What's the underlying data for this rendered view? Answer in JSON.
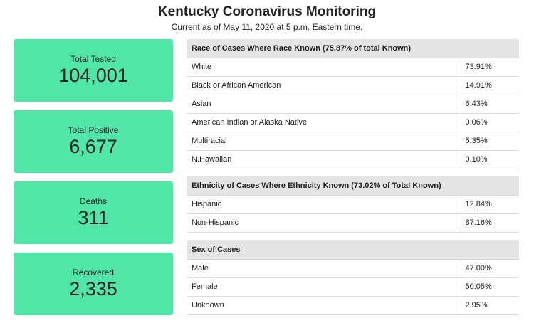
{
  "header": {
    "title": "Kentucky Coronavirus Monitoring",
    "subtitle": "Current as of May 11, 2020 at 5 p.m. Eastern time."
  },
  "cards": [
    {
      "label": "Total Tested",
      "value": "104,001"
    },
    {
      "label": "Total Positive",
      "value": "6,677"
    },
    {
      "label": "Deaths",
      "value": "311"
    },
    {
      "label": "Recovered",
      "value": "2,335"
    }
  ],
  "colors": {
    "card_bg": "#52e5a8",
    "table_header_bg": "#e4e4e4"
  },
  "race": {
    "heading": "Race of Cases Where Race Known (75.87% of total Known)",
    "rows": [
      {
        "name": "White",
        "pct": "73.91%"
      },
      {
        "name": "Black or African American",
        "pct": "14.91%"
      },
      {
        "name": "Asian",
        "pct": "6.43%"
      },
      {
        "name": "American Indian or Alaska Native",
        "pct": "0.06%"
      },
      {
        "name": "Multiracial",
        "pct": "5.35%"
      },
      {
        "name": "N.Hawaiian",
        "pct": "0.10%"
      }
    ]
  },
  "ethnicity": {
    "heading": "Ethnicity of Cases Where Ethnicity Known (73.02% of Total Known)",
    "rows": [
      {
        "name": "Hispanic",
        "pct": "12.84%"
      },
      {
        "name": "Non-Hispanic",
        "pct": "87.16%"
      }
    ]
  },
  "sex": {
    "heading": "Sex of Cases",
    "rows": [
      {
        "name": "Male",
        "pct": "47.00%"
      },
      {
        "name": "Female",
        "pct": "50.05%"
      },
      {
        "name": "Unknown",
        "pct": "2.95%"
      }
    ]
  }
}
